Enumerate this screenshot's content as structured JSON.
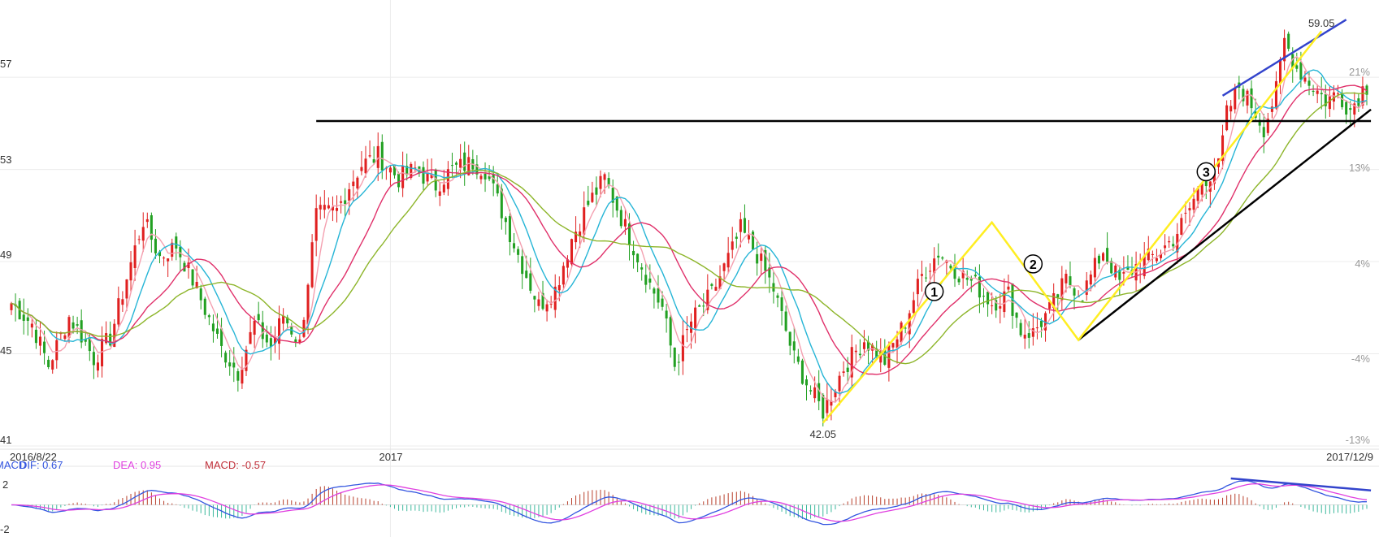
{
  "chart_data": {
    "type": "candlestick",
    "price_axis": {
      "ylim": [
        41,
        60
      ],
      "ticks": [
        {
          "value": 57,
          "label": "57"
        },
        {
          "value": 53,
          "label": "53"
        },
        {
          "value": 49,
          "label": "49"
        },
        {
          "value": 45,
          "label": "45"
        },
        {
          "value": 41,
          "label": "41"
        }
      ]
    },
    "percent_axis": {
      "ticks": [
        {
          "value": 21,
          "label": "21%"
        },
        {
          "value": 13,
          "label": "13%"
        },
        {
          "value": 4,
          "label": "4%"
        },
        {
          "value": -4,
          "label": "-4%"
        },
        {
          "value": -13,
          "label": "-13%"
        }
      ]
    },
    "x_labels": {
      "start_date": "2016/8/22",
      "year_marker": "2017",
      "end_date": "2017/12/9"
    },
    "bar_count": 330,
    "year_marker_index": 92,
    "price_path": [
      [
        0,
        47.2
      ],
      [
        10,
        46.3
      ],
      [
        18,
        44.5
      ],
      [
        28,
        46.6
      ],
      [
        34,
        45.8
      ],
      [
        40,
        44.8
      ],
      [
        48,
        45.7
      ],
      [
        56,
        48.3
      ],
      [
        64,
        50.8
      ],
      [
        72,
        49.2
      ],
      [
        80,
        49.7
      ],
      [
        88,
        48.2
      ],
      [
        96,
        46.5
      ],
      [
        102,
        45.2
      ],
      [
        110,
        44.2
      ],
      [
        118,
        46.3
      ],
      [
        126,
        45.3
      ],
      [
        132,
        46.7
      ],
      [
        140,
        45.4
      ],
      [
        148,
        51.0
      ],
      [
        158,
        51.2
      ],
      [
        164,
        52.3
      ],
      [
        170,
        53.2
      ],
      [
        178,
        53.6
      ],
      [
        188,
        52.6
      ],
      [
        196,
        53.0
      ],
      [
        206,
        52.3
      ],
      [
        214,
        53.0
      ],
      [
        224,
        53.3
      ],
      [
        230,
        53.0
      ],
      [
        238,
        51.2
      ],
      [
        246,
        49.3
      ],
      [
        256,
        47.1
      ],
      [
        264,
        47.8
      ],
      [
        272,
        50.0
      ],
      [
        280,
        51.5
      ],
      [
        288,
        52.6
      ],
      [
        298,
        50.5
      ],
      [
        310,
        48.0
      ],
      [
        316,
        47.0
      ],
      [
        322,
        44.5
      ],
      [
        330,
        46.4
      ],
      [
        340,
        47.6
      ],
      [
        350,
        49.5
      ],
      [
        354,
        50.4
      ],
      [
        362,
        49.3
      ],
      [
        370,
        47.8
      ],
      [
        380,
        44.8
      ],
      [
        388,
        43.4
      ],
      [
        394,
        42.5
      ],
      [
        404,
        44.4
      ],
      [
        414,
        45.6
      ],
      [
        424,
        44.7
      ],
      [
        434,
        46.4
      ],
      [
        442,
        48.4
      ],
      [
        450,
        49.4
      ],
      [
        460,
        48.5
      ],
      [
        468,
        48.0
      ],
      [
        476,
        47.2
      ],
      [
        484,
        47.6
      ],
      [
        490,
        46.0
      ],
      [
        496,
        45.9
      ],
      [
        504,
        46.9
      ],
      [
        512,
        48.2
      ],
      [
        520,
        47.6
      ],
      [
        530,
        49.5
      ],
      [
        538,
        48.1
      ],
      [
        548,
        49.0
      ],
      [
        556,
        49.3
      ],
      [
        564,
        50.0
      ],
      [
        570,
        50.9
      ],
      [
        578,
        52.5
      ],
      [
        586,
        53.1
      ],
      [
        590,
        55.4
      ],
      [
        596,
        56.6
      ],
      [
        602,
        55.8
      ],
      [
        608,
        54.8
      ],
      [
        614,
        56.4
      ],
      [
        618,
        58.6
      ],
      [
        624,
        57.4
      ],
      [
        630,
        56.8
      ],
      [
        638,
        56.0
      ],
      [
        644,
        56.3
      ],
      [
        650,
        55.6
      ],
      [
        656,
        56.5
      ],
      [
        662,
        56.8
      ]
    ],
    "high_annotation": {
      "label": "59.05",
      "value": 59.05,
      "index": 318
    },
    "low_annotation": {
      "label": "42.05",
      "value": 42.05,
      "index": 197
    },
    "support_line": {
      "from": {
        "index": 74,
        "value": 55.1
      },
      "to": {
        "index": 330,
        "value": 55.1
      }
    },
    "uptrend_line": {
      "from": {
        "index": 259,
        "value": 45.6
      },
      "to": {
        "index": 330,
        "value": 55.6
      }
    },
    "upper_channel_line": {
      "from": {
        "index": 294,
        "value": 56.2
      },
      "to": {
        "index": 324,
        "value": 59.5
      }
    },
    "wave_path": [
      {
        "index": 197,
        "value": 42.0
      },
      {
        "index": 238,
        "value": 50.7
      },
      {
        "index": 259,
        "value": 45.6
      },
      {
        "index": 318,
        "value": 59.0
      }
    ],
    "wave_labels": [
      {
        "label": "1",
        "index": 224,
        "value": 47.7
      },
      {
        "label": "2",
        "index": 248,
        "value": 48.9
      },
      {
        "label": "3",
        "index": 290,
        "value": 52.9
      }
    ],
    "moving_average_colors": [
      "#f4a0b0",
      "#26b5d6",
      "#e0306a",
      "#8db52a"
    ],
    "macd": {
      "title": "MACD",
      "dif_label": "DIF: 0.67",
      "dea_label": "DEA: 0.95",
      "macd_label": "MACD: -0.57",
      "ticks": [
        {
          "value": 2,
          "label": "2"
        },
        {
          "value": -2,
          "label": "-2"
        }
      ],
      "ylim": [
        -2.4,
        2.4
      ],
      "dif_color": "#3355e0",
      "dea_color": "#e040e0",
      "up_color": "#b8402c",
      "down_color": "#3cb89c",
      "divergence_line": {
        "from": {
          "index": 296,
          "value": 2.2
        },
        "to": {
          "index": 330,
          "value": 1.2
        }
      }
    },
    "colors": {
      "up": "#e02020",
      "down": "#22a022",
      "support": "#000000",
      "wave": "#ffee22",
      "channel": "#3344cc"
    }
  }
}
